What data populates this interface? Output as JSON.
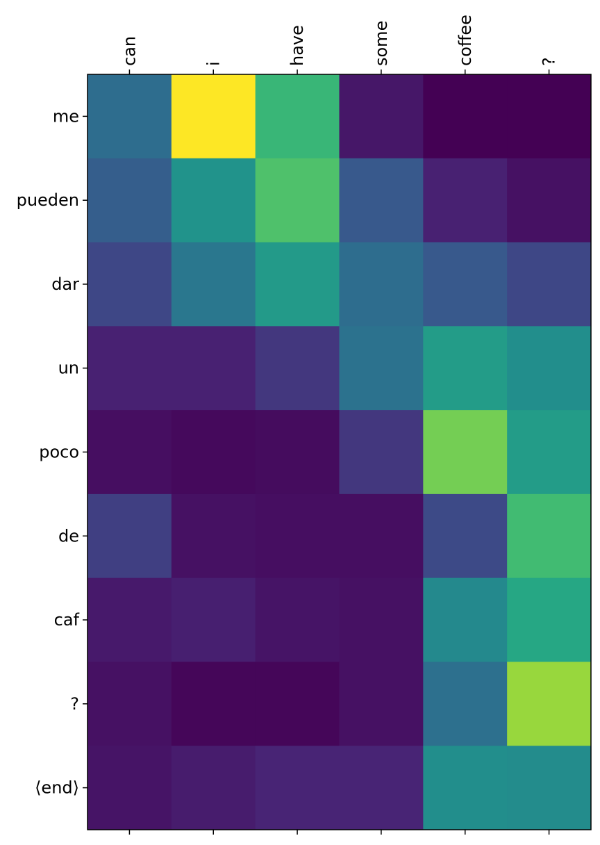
{
  "chart_data": {
    "type": "heatmap",
    "title": "",
    "xlabel": "",
    "ylabel": "",
    "x_labels": [
      "can",
      "i",
      "have",
      "some",
      "coffee",
      "?"
    ],
    "y_labels": [
      "me",
      "pueden",
      "dar",
      "un",
      "poco",
      "de",
      "caf",
      "?",
      "⟨end⟩"
    ],
    "x_axis_position": "top",
    "colormap": "viridis",
    "grid": false,
    "values": [
      [
        0.36,
        1.0,
        0.67,
        0.08,
        0.0,
        0.0
      ],
      [
        0.3,
        0.51,
        0.72,
        0.28,
        0.12,
        0.06
      ],
      [
        0.22,
        0.4,
        0.54,
        0.36,
        0.28,
        0.22
      ],
      [
        0.12,
        0.12,
        0.18,
        0.38,
        0.55,
        0.49
      ],
      [
        0.05,
        0.03,
        0.04,
        0.18,
        0.79,
        0.55
      ],
      [
        0.2,
        0.06,
        0.05,
        0.05,
        0.23,
        0.69
      ],
      [
        0.09,
        0.11,
        0.07,
        0.06,
        0.47,
        0.6
      ],
      [
        0.06,
        0.02,
        0.02,
        0.06,
        0.37,
        0.85
      ],
      [
        0.07,
        0.1,
        0.13,
        0.13,
        0.49,
        0.48
      ]
    ]
  }
}
